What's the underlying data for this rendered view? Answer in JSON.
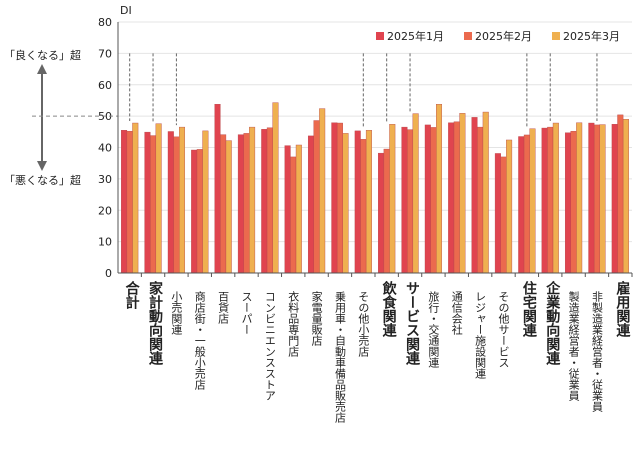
{
  "chart_data": {
    "type": "bar",
    "ylabel": "DI",
    "ylim": [
      0,
      80
    ],
    "yticks": [
      0,
      10,
      20,
      30,
      40,
      50,
      60,
      70,
      80
    ],
    "grid": true,
    "legend_position": "top-right",
    "annotations": {
      "up": "「良くなる」超",
      "down": "「悪くなる」超",
      "reference": 50
    },
    "categories": [
      "合計",
      "家計動向関連",
      "小売関連",
      "商店街・一般小売店",
      "百貨店",
      "スーパー",
      "コンビニエンスストア",
      "衣料品専門店",
      "家電量販店",
      "乗用車・自動車備品販売店",
      "その他小売店",
      "飲食関連",
      "サービス関連",
      "旅行・交通関連",
      "通信会社",
      "レジャー施設関連",
      "その他サービス",
      "住宅関連",
      "企業動向関連",
      "製造業経営者・従業員",
      "非製造業経営者・従業員",
      "雇用関連"
    ],
    "major_categories": [
      "合計",
      "家計動向関連",
      "飲食関連",
      "サービス関連",
      "住宅関連",
      "企業動向関連",
      "雇用関連"
    ],
    "dashed_categories": [
      "合計",
      "家計動向関連",
      "小売関連",
      "その他小売店",
      "飲食関連",
      "サービス関連",
      "住宅関連",
      "企業動向関連",
      "非製造業経営者・従業員"
    ],
    "series": [
      {
        "name": "2025年1月",
        "color": "#e0444f",
        "values": [
          45.5,
          44.9,
          45.1,
          39.2,
          53.8,
          44.1,
          45.8,
          40.6,
          43.7,
          47.9,
          45.3,
          38.2,
          46.5,
          47.2,
          47.9,
          49.6,
          38.1,
          43.5,
          46.2,
          44.7,
          47.8,
          47.4
        ]
      },
      {
        "name": "2025年2月",
        "color": "#eb6a4e",
        "values": [
          45.2,
          43.8,
          43.4,
          39.4,
          44.1,
          44.5,
          46.3,
          37.0,
          48.6,
          47.8,
          42.6,
          39.5,
          45.7,
          46.4,
          48.2,
          46.5,
          37.0,
          44.0,
          46.5,
          45.2,
          47.2,
          50.4
        ]
      },
      {
        "name": "2025年3月",
        "color": "#efb050",
        "values": [
          47.8,
          47.6,
          46.5,
          45.3,
          42.2,
          46.5,
          54.3,
          40.8,
          52.4,
          44.5,
          45.5,
          47.4,
          50.8,
          53.8,
          50.9,
          51.3,
          42.4,
          46.0,
          47.8,
          47.9,
          47.3,
          49.0
        ]
      }
    ]
  }
}
